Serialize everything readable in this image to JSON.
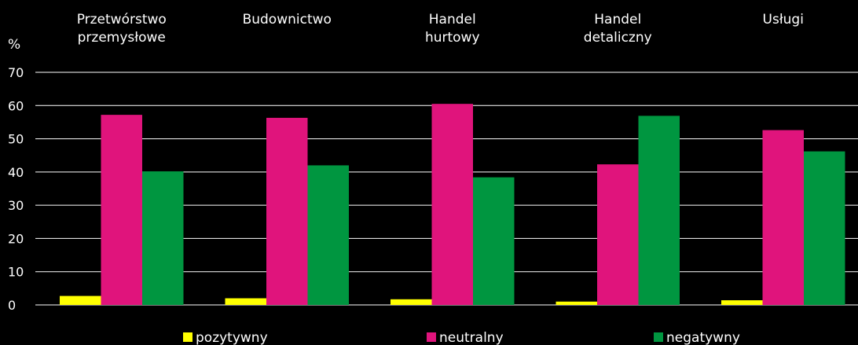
{
  "chart_data": {
    "type": "bar",
    "ylabel": "%",
    "ylim": [
      0,
      70
    ],
    "yticks": [
      0,
      10,
      20,
      30,
      40,
      50,
      60,
      70
    ],
    "grid": true,
    "legend_position": "bottom",
    "categories": [
      [
        "Przetwórstwo",
        "przemysłowe"
      ],
      [
        "Budownictwo"
      ],
      [
        "Handel",
        "hurtowy"
      ],
      [
        "Handel",
        "detaliczny"
      ],
      [
        "Usługi"
      ]
    ],
    "series": [
      {
        "name": "pozytywny",
        "color": "#ffff00",
        "values": [
          2.7,
          2.0,
          1.7,
          1.0,
          1.4
        ]
      },
      {
        "name": "neutralny",
        "color": "#e0147c",
        "values": [
          57.2,
          56.3,
          60.5,
          42.3,
          52.6
        ]
      },
      {
        "name": "negatywny",
        "color": "#009640",
        "values": [
          40.2,
          42.0,
          38.4,
          56.9,
          46.2
        ]
      }
    ]
  }
}
